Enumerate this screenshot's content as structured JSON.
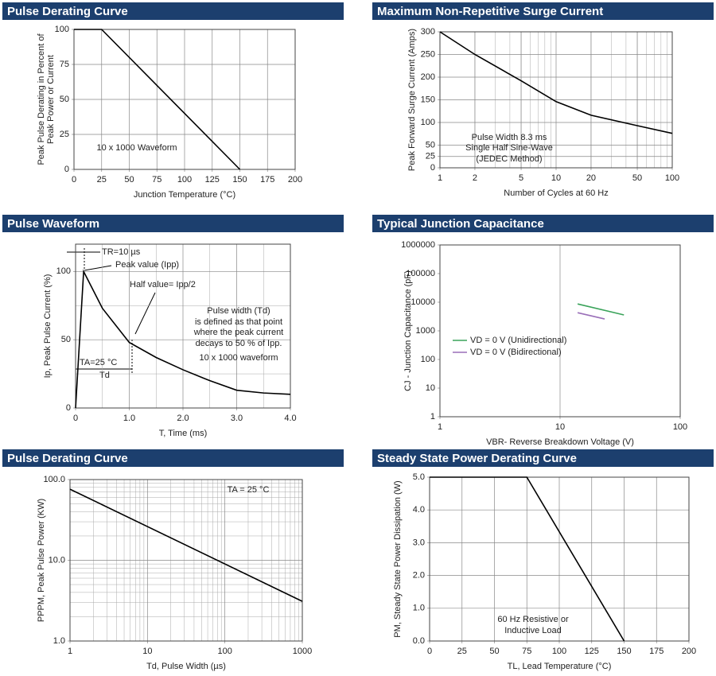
{
  "chart_data": [
    {
      "type": "line",
      "title": "Pulse Derating Curve",
      "xlabel": "Junction Temperature (°C)",
      "ylabel": [
        "Peak Pulse Derating in Percent of",
        "Peak Power or Current"
      ],
      "series": [
        {
          "color": "#000000",
          "x": [
            0,
            25,
            150
          ],
          "values": [
            100,
            100,
            0
          ]
        }
      ],
      "xlim": [
        0,
        200
      ],
      "xticks": [
        0,
        25,
        50,
        75,
        100,
        125,
        150,
        175,
        200
      ],
      "ylim": [
        0,
        100
      ],
      "yticks": [
        0,
        25,
        50,
        75,
        100
      ],
      "grid": "both",
      "minor_grid": false,
      "annotations": [
        "10 x 1000 Waveform"
      ]
    },
    {
      "type": "line",
      "title": "Maximum Non-Repetitive Surge Current",
      "xlabel": "Number of Cycles at 60 Hz",
      "ylabel": [
        "Peak Forward Surge Current (Amps)"
      ],
      "series": [
        {
          "color": "#000000",
          "x": [
            1,
            2,
            5,
            10,
            20,
            50,
            100
          ],
          "values": [
            300,
            250,
            192,
            146,
            116,
            93,
            76
          ]
        }
      ],
      "xscale": "log",
      "xlim": [
        1,
        100
      ],
      "xticks": [
        1,
        2,
        5,
        10,
        20,
        50,
        100
      ],
      "ylim": [
        0,
        300
      ],
      "yticks": [
        0,
        25,
        50,
        100,
        150,
        200,
        250,
        300
      ],
      "grid": "both",
      "minor_grid": "x",
      "annotations": [
        "Pulse Width 8.3 ms",
        "Single Half Sine-Wave",
        "(JEDEC Method)"
      ]
    },
    {
      "type": "line",
      "title": "Pulse Waveform",
      "xlabel": "T, Time (ms)",
      "ylabel": [
        "Ip, Peak Pulse Current (%)"
      ],
      "series": [
        {
          "color": "#000000",
          "x": [
            0,
            0.15,
            0.5,
            1.0,
            1.5,
            2.0,
            2.5,
            3.0,
            3.5,
            4.0
          ],
          "values": [
            0,
            100,
            73,
            48,
            37,
            28,
            20,
            13,
            11,
            10
          ]
        }
      ],
      "xlim": [
        0,
        4
      ],
      "xticks": [
        0,
        {
          "value": 1,
          "label": "1.0"
        },
        {
          "value": 2,
          "label": "2.0"
        },
        {
          "value": 3,
          "label": "3.0"
        },
        {
          "value": 4,
          "label": "4.0"
        }
      ],
      "ylim": [
        0,
        120
      ],
      "yticks": [
        0,
        50,
        100
      ],
      "grid": "both",
      "minor_grid": "both",
      "annotations": [
        "TR=10 µs",
        "Peak value (Ipp)",
        "Half value= Ipp/2",
        "Pulse width (Td)",
        "is defined as that point",
        "where the peak current",
        "decays to 50 % of Ipp.",
        "10 x 1000 waveform",
        "TA=25 °C",
        "Td"
      ]
    },
    {
      "type": "line",
      "title": "Typical Junction Capacitance",
      "xlabel": "VBR- Reverse Breakdown Voltage (V)",
      "ylabel": [
        "CJ - Junction Capacitance (pF)"
      ],
      "series": [
        {
          "name": "VD = 0 V (Unidirectional)",
          "color": "#3aa35a",
          "x": [
            14,
            34
          ],
          "values": [
            8700,
            3600
          ]
        },
        {
          "name": "VD = 0 V (Bidirectional)",
          "color": "#9a6fb8",
          "x": [
            14,
            23.5
          ],
          "values": [
            4300,
            2600
          ]
        }
      ],
      "xscale": "log",
      "yscale": "log",
      "xlim": [
        1,
        100
      ],
      "xticks": [
        1,
        10,
        100
      ],
      "ylim": [
        1,
        1000000
      ],
      "yticks": [
        1,
        10,
        100,
        1000,
        10000,
        100000,
        1000000
      ],
      "grid": "x",
      "minor_grid": false,
      "legend_position": "lower left",
      "annotations": []
    },
    {
      "type": "line",
      "title": "Pulse Derating Curve",
      "xlabel": "Td, Pulse Width (µs)",
      "ylabel": [
        "PPPM, Peak Pulse Power (KW)"
      ],
      "series": [
        {
          "color": "#000000",
          "x": [
            1,
            1000
          ],
          "values": [
            76,
            3.1
          ]
        }
      ],
      "xscale": "log",
      "yscale": "log",
      "xlim": [
        1,
        1000
      ],
      "xticks": [
        1,
        10,
        100,
        1000
      ],
      "ylim": [
        1,
        100
      ],
      "yticks": [
        {
          "value": 1,
          "label": "1.0"
        },
        {
          "value": 10,
          "label": "10.0"
        },
        {
          "value": 100,
          "label": "100.0"
        }
      ],
      "grid": "both",
      "minor_grid": "both",
      "annotations": [
        "TA = 25 °C"
      ]
    },
    {
      "type": "line",
      "title": "Steady State Power Derating Curve",
      "xlabel": "TL, Lead Temperature (°C)",
      "ylabel": [
        "PM, Steady State Power Dissipation (W)"
      ],
      "series": [
        {
          "color": "#000000",
          "x": [
            0,
            75,
            150
          ],
          "values": [
            5,
            5,
            0
          ]
        }
      ],
      "xlim": [
        0,
        200
      ],
      "xticks": [
        0,
        25,
        50,
        75,
        100,
        125,
        150,
        175,
        200
      ],
      "ylim": [
        0,
        5
      ],
      "yticks": [
        {
          "value": 0,
          "label": "0.0"
        },
        {
          "value": 1,
          "label": "1.0"
        },
        {
          "value": 2,
          "label": "2.0"
        },
        {
          "value": 3,
          "label": "3.0"
        },
        {
          "value": 4,
          "label": "4.0"
        },
        {
          "value": 5,
          "label": "5.0"
        }
      ],
      "grid": "both",
      "minor_grid": false,
      "annotations": [
        "60 Hz Resistive or",
        "Inductive Load"
      ]
    }
  ]
}
